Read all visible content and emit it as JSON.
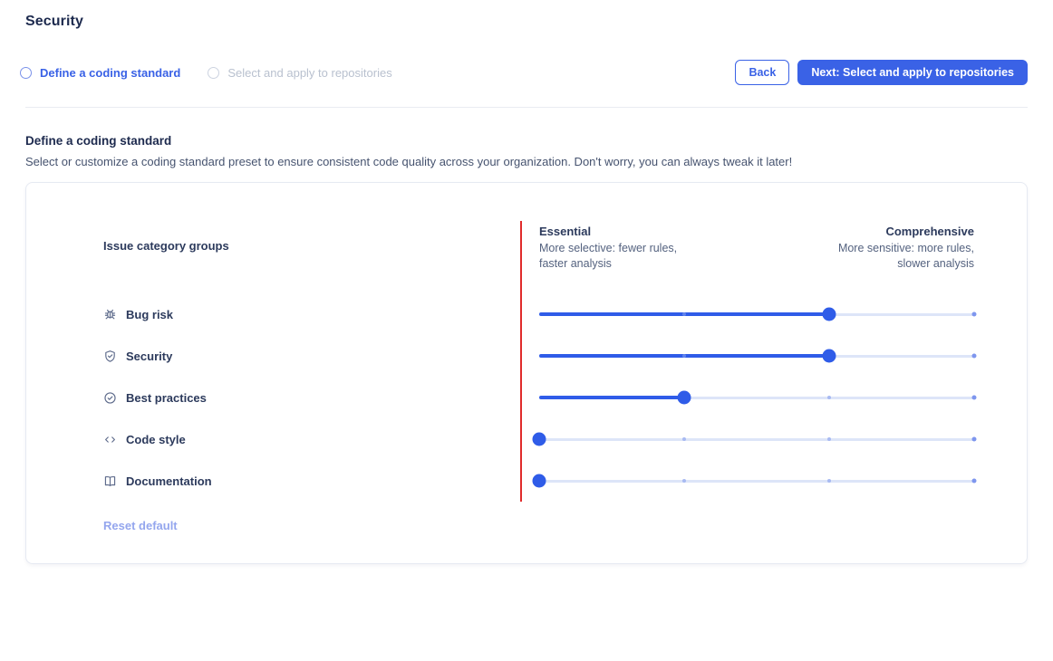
{
  "page": {
    "title": "Security"
  },
  "stepper": {
    "steps": [
      {
        "label": "Define a coding standard",
        "active": true
      },
      {
        "label": "Select and apply to repositories",
        "active": false
      }
    ]
  },
  "actions": {
    "back_label": "Back",
    "next_label": "Next: Select and apply to repositories"
  },
  "section": {
    "heading": "Define a coding standard",
    "description": "Select or customize a coding standard preset to ensure consistent code quality across your organization. Don't worry, you can always tweak it later!"
  },
  "panel": {
    "rows_header": "Issue category groups",
    "scale": {
      "left_title": "Essential",
      "left_sub_line1": "More selective: fewer rules,",
      "left_sub_line2": "faster analysis",
      "right_title": "Comprehensive",
      "right_sub_line1": "More sensitive: more rules,",
      "right_sub_line2": "slower analysis"
    },
    "categories": [
      {
        "label": "Bug risk",
        "icon": "bug-icon",
        "value": 2,
        "max": 3
      },
      {
        "label": "Security",
        "icon": "shield-check-icon",
        "value": 2,
        "max": 3
      },
      {
        "label": "Best practices",
        "icon": "check-circle-icon",
        "value": 1,
        "max": 3
      },
      {
        "label": "Code style",
        "icon": "code-icon",
        "value": 0,
        "max": 3
      },
      {
        "label": "Documentation",
        "icon": "book-icon",
        "value": 0,
        "max": 3
      }
    ],
    "reset_label": "Reset default"
  },
  "colors": {
    "accent": "#3a62e6",
    "slider_fill": "#2f5ce8",
    "slider_track": "#dde5f8",
    "red_guide_line": "#e02b2b",
    "heading_text": "#1d2a4e",
    "inactive_step": "#b9c1cf",
    "reset_link": "#94a6ee"
  }
}
